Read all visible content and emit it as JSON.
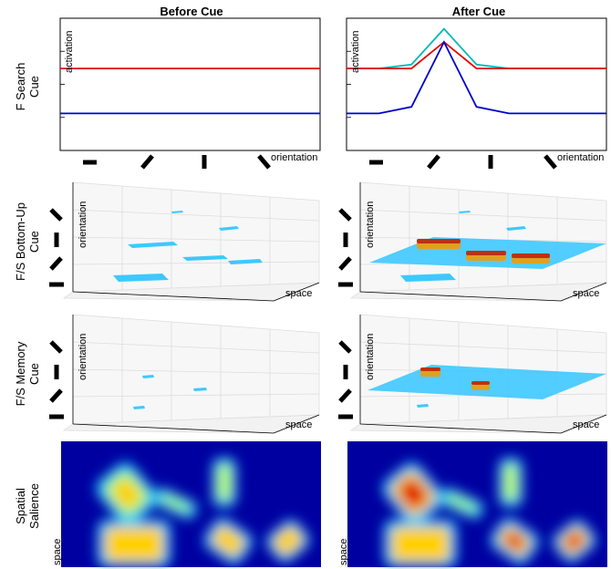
{
  "columns": {
    "left": "Before Cue",
    "right": "After Cue"
  },
  "rows": {
    "search": [
      "F Search",
      "Cue"
    ],
    "bottomup": [
      "F/S Bottom-Up",
      "Cue"
    ],
    "memory": [
      "F/S Memory",
      "Cue"
    ],
    "salience": [
      "Spatial",
      "Salience"
    ]
  },
  "axes": {
    "activation": "activation",
    "orientation": "orientation",
    "space": "space"
  },
  "orientation_glyphs": [
    "horizontal-bar-icon",
    "diagonal-rising-bar-icon",
    "vertical-bar-icon",
    "diagonal-falling-bar-icon"
  ],
  "colors": {
    "red": "#e00000",
    "blue": "#0000cc",
    "cyan": "#00b8b8",
    "plane": "#3ec8ff",
    "heat_low": "#0000a0"
  },
  "chart_data": [
    {
      "type": "line",
      "panel": "before",
      "x": [
        0,
        1,
        2,
        3,
        4,
        5,
        6,
        7,
        8
      ],
      "series": [
        {
          "color": "red",
          "values": [
            0.62,
            0.62,
            0.62,
            0.62,
            0.62,
            0.62,
            0.62,
            0.62,
            0.62
          ]
        },
        {
          "color": "blue",
          "values": [
            0.28,
            0.28,
            0.28,
            0.28,
            0.28,
            0.28,
            0.28,
            0.28,
            0.28
          ]
        }
      ],
      "ylim": [
        0,
        1
      ]
    },
    {
      "type": "line",
      "panel": "after",
      "x": [
        0,
        1,
        2,
        3,
        4,
        5,
        6,
        7,
        8
      ],
      "series": [
        {
          "color": "cyan",
          "values": [
            0.62,
            0.62,
            0.65,
            0.92,
            0.65,
            0.62,
            0.62,
            0.62,
            0.62
          ]
        },
        {
          "color": "red",
          "values": [
            0.62,
            0.62,
            0.62,
            0.82,
            0.62,
            0.62,
            0.62,
            0.62,
            0.62
          ]
        },
        {
          "color": "blue",
          "values": [
            0.28,
            0.28,
            0.33,
            0.82,
            0.33,
            0.28,
            0.28,
            0.28,
            0.28
          ]
        }
      ],
      "ylim": [
        0,
        1
      ]
    }
  ]
}
